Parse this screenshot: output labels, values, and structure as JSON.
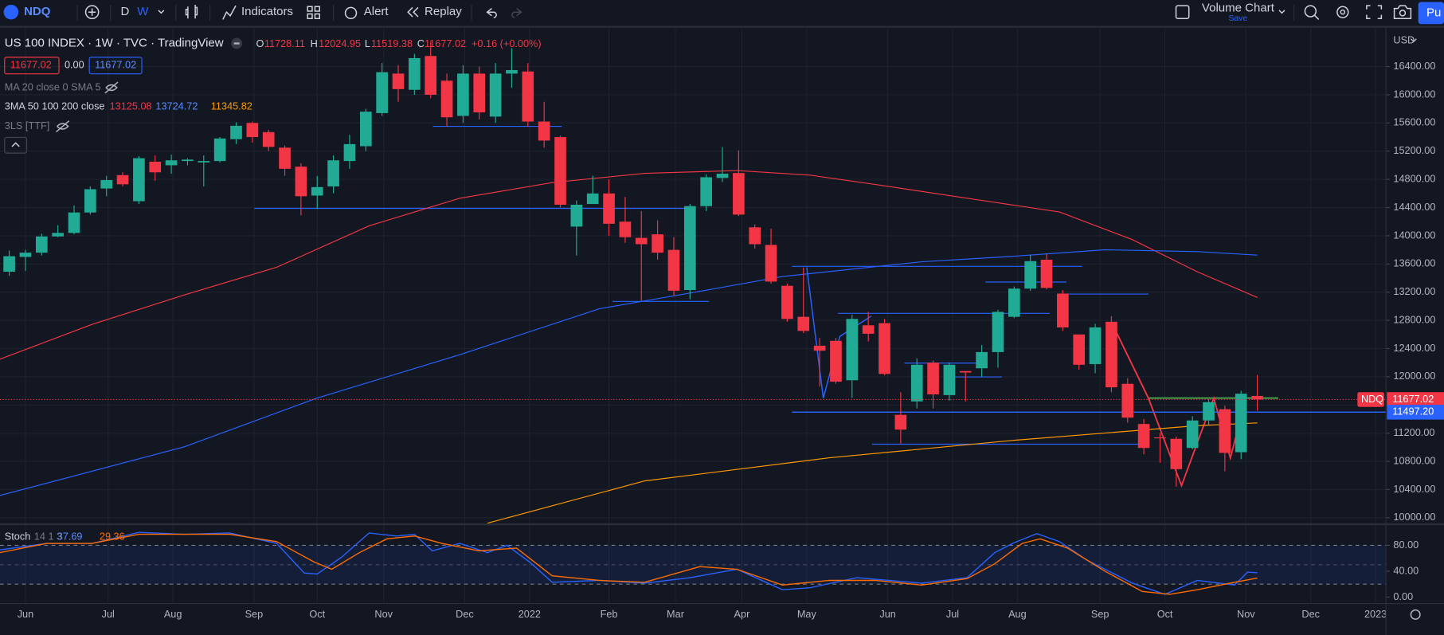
{
  "toolbar": {
    "symbol": "NDQ",
    "intervals": [
      "D",
      "W"
    ],
    "indicators": "Indicators",
    "alert": "Alert",
    "replay": "Replay",
    "layout_name": "Volume Chart",
    "layout_status": "Save",
    "action": "Pu"
  },
  "legend": {
    "ohlc": [
      {
        "key": "O",
        "value": "11728.11"
      },
      {
        "key": "H",
        "value": "12024.95"
      },
      {
        "key": "L",
        "value": "11519.38"
      },
      {
        "key": "C",
        "value": "11677.02"
      }
    ],
    "change": "+0.16 (+0.00%)",
    "price_boxes": [
      "11677.02",
      "0.00",
      "11677.02"
    ],
    "ma_line": "MA 20 close 0 SMA 5",
    "three_ma": "3MA 50 100 200 close",
    "three_ma_values": [
      "13125.08",
      "13724.72",
      "11345.82"
    ],
    "ls": "3LS [TTF]"
  },
  "currency": "USD",
  "chart_data": [
    {
      "type": "candlestick",
      "title": "US 100 INDEX · 1W · TVC · TradingView",
      "up_color": "#22ab94",
      "down_color": "#f23645",
      "open": [
        13490,
        13700,
        13760,
        13990,
        14040,
        14330,
        14670,
        14860,
        14490,
        15050,
        15000,
        15060,
        15040,
        15060,
        15370,
        15600,
        15470,
        15250,
        14980,
        14570,
        14700,
        15060,
        15270,
        15740,
        16300,
        16070,
        16550,
        16200,
        15700,
        16300,
        15690,
        16300,
        16330,
        15620,
        15400,
        14130,
        14450,
        14600,
        14200,
        13970,
        14020,
        13800,
        13230,
        14420,
        14820,
        14890,
        14120,
        13870,
        13290,
        12850,
        12440,
        12510,
        11950,
        12730,
        12760,
        11460,
        11650,
        12200,
        11740,
        12080,
        12120,
        12350,
        12850,
        13250,
        13660,
        13180,
        12600,
        12180,
        12780,
        11900,
        11330,
        11140,
        11120,
        10990,
        11380,
        11540,
        10930,
        11728.11
      ],
      "high": [
        13790,
        13800,
        14030,
        14150,
        14430,
        14700,
        14850,
        14900,
        15130,
        15140,
        15150,
        15100,
        15140,
        15400,
        15610,
        15620,
        15500,
        15280,
        15030,
        14850,
        15140,
        15430,
        15800,
        16450,
        16420,
        16580,
        16750,
        16300,
        16420,
        16400,
        16450,
        16660,
        16450,
        15900,
        15420,
        14500,
        14850,
        14800,
        14550,
        14350,
        14220,
        13980,
        14450,
        14870,
        15260,
        15210,
        14160,
        14100,
        13320,
        13550,
        12550,
        12550,
        12880,
        12920,
        12820,
        11780,
        12260,
        12230,
        12200,
        12080,
        12450,
        12950,
        13280,
        13730,
        13740,
        13230,
        12600,
        12750,
        12860,
        11980,
        11400,
        11200,
        11150,
        11440,
        11680,
        11590,
        11800,
        12024.95
      ],
      "low": [
        13430,
        13500,
        13720,
        13980,
        14020,
        14300,
        14560,
        14700,
        14450,
        14780,
        14880,
        15000,
        14700,
        15040,
        15300,
        15320,
        15200,
        14850,
        14290,
        14380,
        14600,
        14950,
        15200,
        15700,
        15900,
        16000,
        15950,
        15550,
        15600,
        15650,
        15600,
        16100,
        15550,
        15250,
        14400,
        13720,
        14450,
        14000,
        13900,
        13080,
        13660,
        13150,
        13100,
        14350,
        14760,
        14280,
        13820,
        13320,
        12780,
        12620,
        11860,
        11900,
        11700,
        12500,
        12020,
        11050,
        11550,
        11550,
        11660,
        11650,
        12000,
        12130,
        12830,
        13220,
        13240,
        12650,
        12100,
        12050,
        11780,
        11350,
        10900,
        10780,
        10440,
        10970,
        11320,
        10660,
        10830,
        11519.38
      ],
      "close": [
        13710,
        13760,
        13990,
        14040,
        14330,
        14660,
        14790,
        14730,
        15100,
        14900,
        15070,
        15080,
        15060,
        15380,
        15560,
        15400,
        15260,
        14950,
        14560,
        14690,
        15070,
        15300,
        15760,
        16320,
        16080,
        16520,
        16000,
        15680,
        16300,
        15750,
        16300,
        16350,
        15620,
        15350,
        14440,
        14440,
        14600,
        14170,
        13980,
        13880,
        13760,
        13220,
        14420,
        14830,
        14880,
        14300,
        13880,
        13350,
        12820,
        12650,
        12370,
        11930,
        12820,
        12610,
        12040,
        11250,
        12170,
        11750,
        12170,
        12060,
        12350,
        12920,
        13250,
        13640,
        13260,
        12700,
        12170,
        12700,
        11850,
        11420,
        10990,
        11130,
        10690,
        11380,
        11640,
        10920,
        11760,
        11677.02
      ],
      "overlays": [
        {
          "color": "#f23645",
          "x": [
            -0.6,
            5.1,
            10.8,
            16.5,
            22.2,
            27.8,
            33.5,
            39.2,
            44.9,
            49.4,
            53.4,
            59.1,
            64.8,
            69.3,
            73.3,
            77
          ],
          "values": [
            12247,
            12743,
            13161,
            13553,
            14141,
            14532,
            14754,
            14885,
            14924,
            14859,
            14728,
            14532,
            14337,
            13945,
            13488,
            13125.08
          ]
        },
        {
          "color": "#2962ff",
          "x": [
            -0.6,
            10.8,
            19.0,
            27.8,
            36.4,
            42.0,
            47.7,
            56.3,
            62.0,
            67.6,
            73.3,
            77
          ],
          "values": [
            10314,
            11006,
            11698,
            12312,
            12965,
            13187,
            13422,
            13631,
            13710,
            13801,
            13775,
            13724.72
          ]
        },
        {
          "color": "#ff9800",
          "x": [
            29.5,
            39.2,
            50.6,
            62.0,
            73.3,
            77
          ],
          "values": [
            9922,
            10523,
            10850,
            11098,
            11307,
            11345.82
          ]
        }
      ],
      "ylim": [
        9920,
        16950
      ],
      "yticks": [
        {
          "value": 10000,
          "label": "10000.00"
        },
        {
          "value": 10400,
          "label": "10400.00"
        },
        {
          "value": 10800,
          "label": "10800.00"
        },
        {
          "value": 11200,
          "label": "11200.00"
        },
        {
          "value": 11600,
          "label": "11600.00"
        },
        {
          "value": 12000,
          "label": "12000.00"
        },
        {
          "value": 12400,
          "label": "12400.00"
        },
        {
          "value": 12800,
          "label": "12800.00"
        },
        {
          "value": 13200,
          "label": "13200.00"
        },
        {
          "value": 13600,
          "label": "13600.00"
        },
        {
          "value": 14000,
          "label": "14000.00"
        },
        {
          "value": 14400,
          "label": "14400.00"
        },
        {
          "value": 14800,
          "label": "14800.00"
        },
        {
          "value": 15200,
          "label": "15200.00"
        },
        {
          "value": 15600,
          "label": "15600.00"
        },
        {
          "value": 16000,
          "label": "16000.00"
        },
        {
          "value": 16400,
          "label": "16400.00"
        }
      ],
      "xlim": [
        -0.57,
        84.94
      ],
      "xticks": [
        {
          "value": 1.0,
          "label": "Jun"
        },
        {
          "value": 6.1,
          "label": "Jul"
        },
        {
          "value": 10.1,
          "label": "Aug"
        },
        {
          "value": 15.1,
          "label": "Sep"
        },
        {
          "value": 19.0,
          "label": "Oct"
        },
        {
          "value": 23.1,
          "label": "Nov"
        },
        {
          "value": 28.1,
          "label": "Dec"
        },
        {
          "value": 32.1,
          "label": "2022"
        },
        {
          "value": 37.0,
          "label": "Feb"
        },
        {
          "value": 41.1,
          "label": "Mar"
        },
        {
          "value": 45.2,
          "label": "Apr"
        },
        {
          "value": 49.2,
          "label": "May"
        },
        {
          "value": 54.2,
          "label": "Jun"
        },
        {
          "value": 58.2,
          "label": "Jul"
        },
        {
          "value": 62.2,
          "label": "Aug"
        },
        {
          "value": 67.3,
          "label": "Sep"
        },
        {
          "value": 71.3,
          "label": "Oct"
        },
        {
          "value": 76.3,
          "label": "Nov"
        },
        {
          "value": 80.3,
          "label": "Dec"
        },
        {
          "value": 84.3,
          "label": "2023"
        }
      ],
      "grid": true,
      "last_price_tag": {
        "symbol": "NDQ",
        "label": "11677.02"
      },
      "price_line": {
        "value": 11497.2,
        "label": "11497.20"
      }
    },
    {
      "type": "line",
      "title": "Stoch",
      "params": "14 1 3",
      "series": [
        {
          "color": "#2962ff",
          "last_label": "37.69",
          "x": [
            -0.6,
            2.3,
            5.1,
            8.0,
            10.8,
            13.6,
            16.5,
            18.2,
            19.0,
            20.5,
            22.2,
            23.9,
            25.0,
            26.1,
            27.8,
            29.5,
            30.7,
            32.1,
            33.5,
            36.4,
            39.2,
            42.0,
            44.9,
            47.7,
            49.4,
            52.3,
            56.3,
            59.1,
            60.8,
            61.9,
            63.4,
            64.8,
            66.5,
            69.3,
            71.3,
            73.3,
            75.6,
            76.4,
            77
          ],
          "values": [
            72.9,
            82.9,
            82.9,
            100,
            97.1,
            99,
            82.9,
            37.1,
            35.7,
            61.4,
            99,
            94.3,
            97.1,
            71.4,
            82.9,
            68.6,
            80,
            54.3,
            22.9,
            25.7,
            21.4,
            30,
            42.9,
            11.4,
            14.3,
            30,
            21.4,
            30,
            68.6,
            82.9,
            98,
            85.7,
            57.1,
            21.4,
            4.3,
            25.7,
            18.6,
            38.6,
            37.69
          ]
        },
        {
          "color": "#ff6d00",
          "last_label": "29.36",
          "x": [
            -0.6,
            2.3,
            5.1,
            8.0,
            13.6,
            16.5,
            18.8,
            19.9,
            21.6,
            23.3,
            25.0,
            26.7,
            29.0,
            31.3,
            33.5,
            36.4,
            39.2,
            42.6,
            44.9,
            47.7,
            50.6,
            53.4,
            56.3,
            59.1,
            60.8,
            62.5,
            63.6,
            65.3,
            67.6,
            69.9,
            71.6,
            73.3,
            75.6,
            77
          ],
          "values": [
            68.6,
            82.9,
            82.9,
            97.1,
            97.1,
            85.7,
            54.3,
            42.9,
            68.6,
            90,
            94.3,
            82.9,
            71.4,
            75.7,
            32.9,
            25.7,
            22.9,
            47.1,
            42.9,
            18.6,
            25.7,
            25.7,
            18.6,
            28.6,
            51.4,
            82.9,
            90,
            75.7,
            40,
            8.6,
            4.3,
            11.4,
            22.9,
            29.36
          ]
        }
      ],
      "ylim": [
        -10,
        111
      ],
      "yticks": [
        {
          "value": 0,
          "label": "0.00"
        },
        {
          "value": 40,
          "label": "40.00"
        },
        {
          "value": 80,
          "label": "80.00"
        }
      ],
      "band": [
        20,
        80
      ],
      "band_mid": 50
    }
  ]
}
